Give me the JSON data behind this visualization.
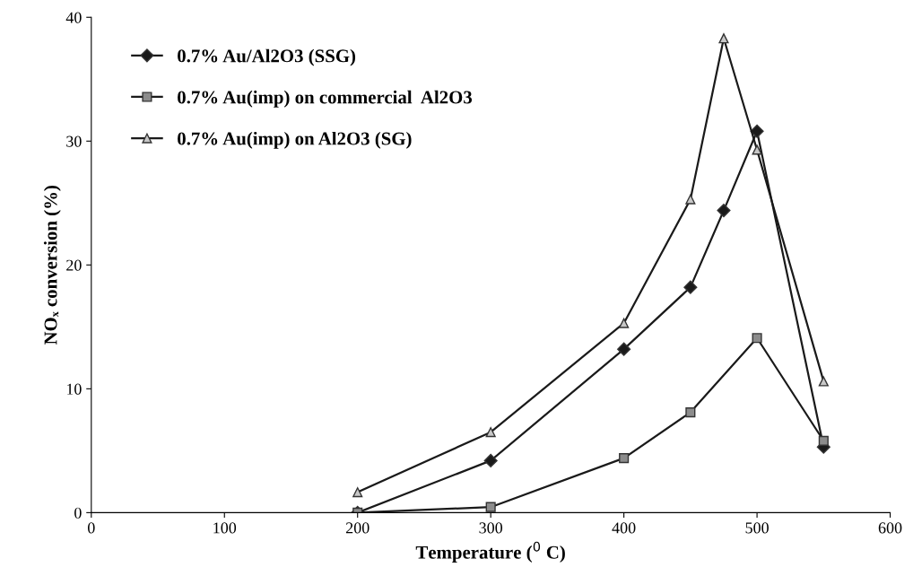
{
  "chart_data": {
    "type": "line",
    "xlabel": "Temperature ($^{0}$ C)",
    "ylabel": "NOₓ conversion (%)",
    "xlim": [
      0,
      600
    ],
    "xticks": [
      0,
      100,
      200,
      300,
      400,
      500,
      600
    ],
    "ylim": [
      0,
      40
    ],
    "yticks": [
      0,
      10,
      20,
      30,
      40
    ],
    "grid": false,
    "legend": "top left",
    "line_style": "solid",
    "series": [
      {
        "name": "0.7% Au/Al2O3 (SSG)",
        "color": "#1a1a1a",
        "marker": "diamond",
        "x": [
          200,
          300,
          400,
          450,
          475,
          500,
          550
        ],
        "values": [
          0,
          4.2,
          13.2,
          18.2,
          24.4,
          30.8,
          5.3
        ]
      },
      {
        "name": "0.7% Au(imp) on commercial  Al2O3",
        "color": "#8c8c8c",
        "marker": "square",
        "x": [
          200,
          300,
          400,
          450,
          500,
          550
        ],
        "values": [
          0,
          0.45,
          4.4,
          8.1,
          14.1,
          5.8
        ]
      },
      {
        "name": "0.7% Au(imp) on Al2O3 (SG)",
        "color": "#c8c8c8",
        "marker": "triangle",
        "x": [
          200,
          300,
          400,
          450,
          475,
          500,
          550
        ],
        "values": [
          1.65,
          6.5,
          15.3,
          25.3,
          38.3,
          29.3,
          10.6
        ]
      }
    ]
  }
}
